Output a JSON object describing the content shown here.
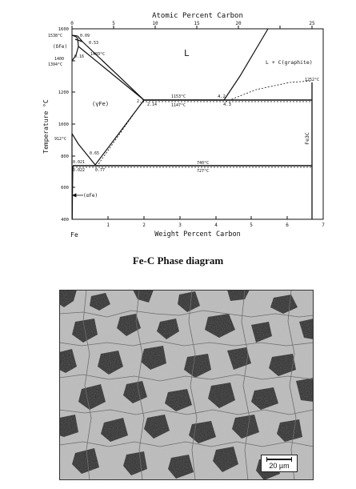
{
  "diagram": {
    "top_axis_title": "Atomic Percent Carbon",
    "top_ticks": [
      "0",
      "5",
      "10",
      "15",
      "20",
      "25"
    ],
    "y_axis_title": "Temperature °C",
    "y_ticks": [
      "1600",
      "1400",
      "1200",
      "1000",
      "800",
      "600",
      "400"
    ],
    "x_axis_title": "Weight Percent Carbon",
    "x_ticks": [
      "Fe",
      "1",
      "2",
      "3",
      "4",
      "5",
      "6",
      "7"
    ],
    "labels": {
      "t1538": "1538°C",
      "delta_fe": "(δFe)",
      "t1400": "1400",
      "t1394": "1394°C",
      "c009": "0.09",
      "c053": "0.53",
      "c016": "0.16",
      "t1493": "1493°C",
      "liquid": "L",
      "l_graphite": "L + C(graphite)",
      "t1252": "1252°C",
      "gamma_fe": "(γFe)",
      "c21": "2.1",
      "c214": "2.14",
      "t1153": "1153°C",
      "t1147": "1147°C",
      "c42": "4.2",
      "c43": "4.3",
      "fe3c": "Fe3C",
      "t912": "912°C",
      "c065": "0.65",
      "c0021": "0.021",
      "c0022": "0.022",
      "c077": "0.77",
      "t740": "740°C",
      "t727": "727°C",
      "alpha_fe": "(αFe)"
    }
  },
  "caption": "Fe-C Phase diagram",
  "micrograph": {
    "scale_label": "20 µm"
  }
}
